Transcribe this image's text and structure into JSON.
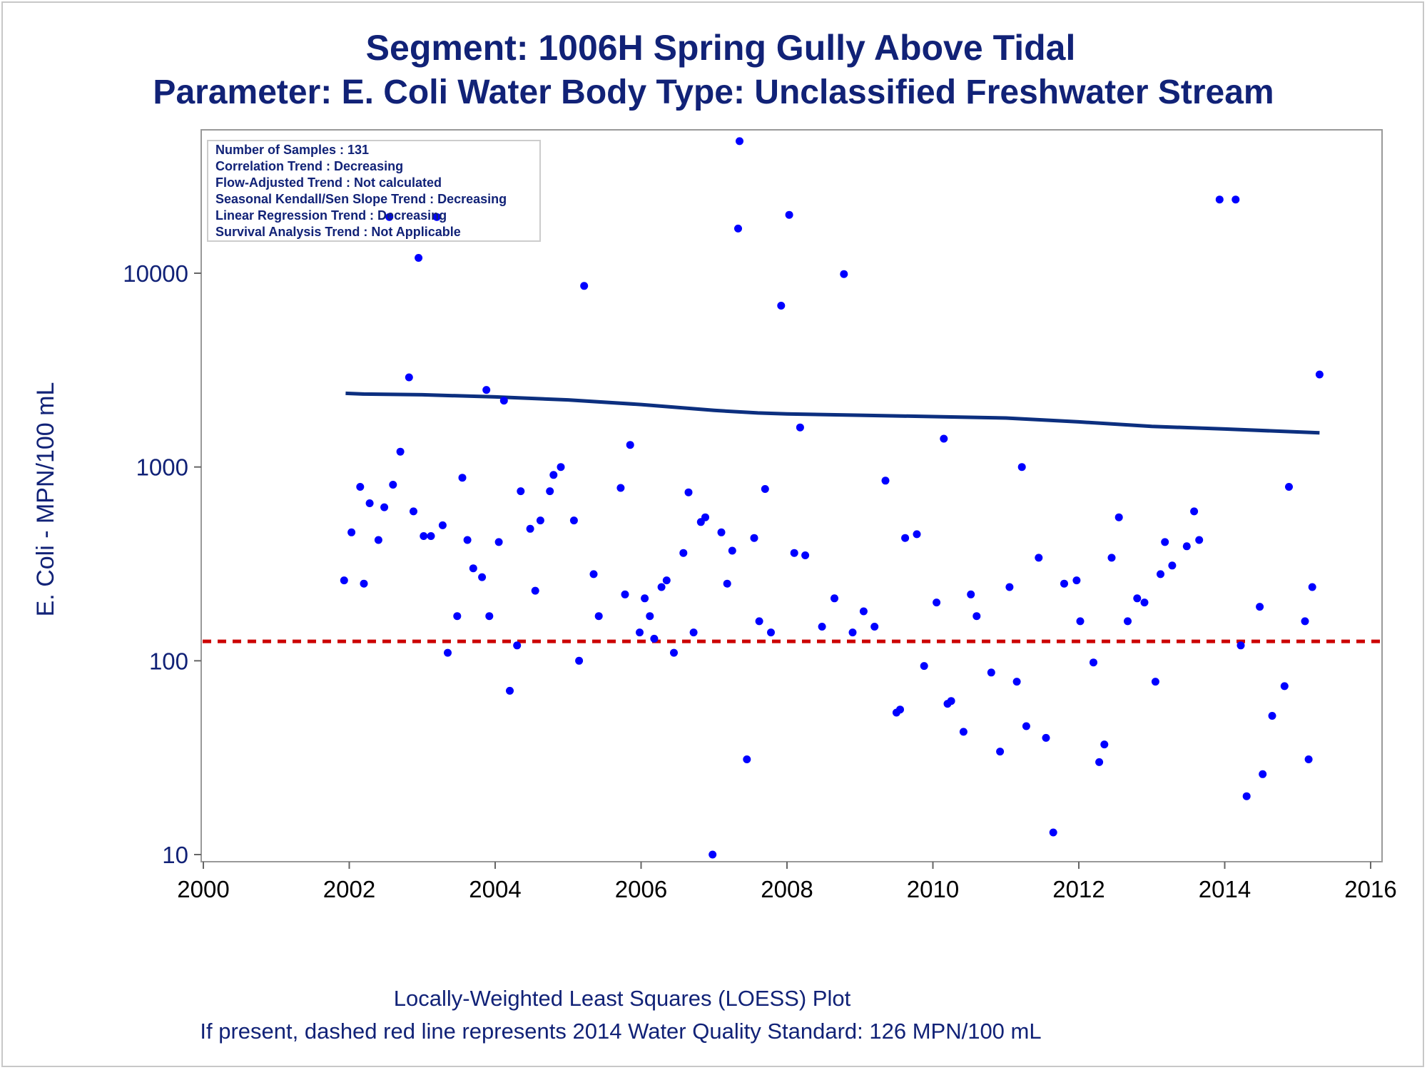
{
  "title": "Segment: 1006H  Spring Gully Above Tidal",
  "subtitle": "Parameter: E. Coli   Water Body Type: Unclassified Freshwater Stream",
  "footer": {
    "line1": "Locally-Weighted Least Squares (LOESS) Plot",
    "line2": "If present, dashed red line represents 2014 Water Quality Standard: 126 MPN/100 mL"
  },
  "info_box": [
    "Number of Samples : 131",
    "Correlation Trend : Decreasing",
    "Flow-Adjusted Trend : Not calculated",
    "Seasonal Kendall/Sen Slope Trend : Decreasing",
    "Linear Regression Trend : Decreasing",
    "Survival Analysis Trend : Not Applicable"
  ],
  "colors": {
    "text": "#112277",
    "points": "#0000ff",
    "loess": "#0c2f7f",
    "standard": "#cc0000",
    "axis": "#999999"
  },
  "chart_data": {
    "type": "scatter",
    "xlabel": "",
    "ylabel": "E. Coli - MPN/100 mL",
    "yscale": "log",
    "xlim": [
      2000,
      2016
    ],
    "ylim": [
      10,
      60000
    ],
    "xticks": [
      2000,
      2002,
      2004,
      2006,
      2008,
      2010,
      2012,
      2014,
      2016
    ],
    "yticks": [
      10,
      100,
      1000,
      10000
    ],
    "grid": false,
    "standard_line": 126,
    "loess": [
      [
        2001.95,
        2400
      ],
      [
        2002.2,
        2380
      ],
      [
        2003,
        2360
      ],
      [
        2004,
        2300
      ],
      [
        2005,
        2220
      ],
      [
        2006,
        2100
      ],
      [
        2007,
        1960
      ],
      [
        2007.6,
        1900
      ],
      [
        2008,
        1880
      ],
      [
        2009,
        1850
      ],
      [
        2010,
        1820
      ],
      [
        2011,
        1790
      ],
      [
        2012,
        1710
      ],
      [
        2013,
        1620
      ],
      [
        2014,
        1570
      ],
      [
        2015.3,
        1500
      ]
    ],
    "points": [
      [
        2001.93,
        260
      ],
      [
        2002.03,
        460
      ],
      [
        2002.15,
        790
      ],
      [
        2002.2,
        250
      ],
      [
        2002.28,
        650
      ],
      [
        2002.4,
        420
      ],
      [
        2002.48,
        620
      ],
      [
        2002.6,
        810
      ],
      [
        2002.7,
        1200
      ],
      [
        2002.82,
        2900
      ],
      [
        2002.88,
        590
      ],
      [
        2002.95,
        12000
      ],
      [
        2002.55,
        19500
      ],
      [
        2003.02,
        440
      ],
      [
        2003.12,
        440
      ],
      [
        2003.2,
        19500
      ],
      [
        2003.28,
        500
      ],
      [
        2003.35,
        110
      ],
      [
        2003.48,
        170
      ],
      [
        2003.55,
        880
      ],
      [
        2003.62,
        420
      ],
      [
        2003.7,
        300
      ],
      [
        2003.82,
        270
      ],
      [
        2003.92,
        170
      ],
      [
        2003.88,
        2500
      ],
      [
        2004.05,
        410
      ],
      [
        2004.12,
        2200
      ],
      [
        2004.2,
        70
      ],
      [
        2004.3,
        120
      ],
      [
        2004.35,
        750
      ],
      [
        2004.48,
        480
      ],
      [
        2004.55,
        230
      ],
      [
        2004.62,
        530
      ],
      [
        2004.75,
        750
      ],
      [
        2004.8,
        910
      ],
      [
        2004.9,
        1000
      ],
      [
        2005.08,
        530
      ],
      [
        2005.15,
        100
      ],
      [
        2005.22,
        8600
      ],
      [
        2005.35,
        280
      ],
      [
        2005.42,
        170
      ],
      [
        2005.72,
        780
      ],
      [
        2005.78,
        220
      ],
      [
        2005.85,
        1300
      ],
      [
        2005.98,
        140
      ],
      [
        2006.05,
        210
      ],
      [
        2006.12,
        170
      ],
      [
        2006.18,
        130
      ],
      [
        2006.28,
        240
      ],
      [
        2006.35,
        260
      ],
      [
        2006.45,
        110
      ],
      [
        2006.58,
        360
      ],
      [
        2006.65,
        740
      ],
      [
        2006.72,
        140
      ],
      [
        2006.82,
        520
      ],
      [
        2006.88,
        550
      ],
      [
        2006.98,
        10
      ],
      [
        2007.1,
        460
      ],
      [
        2007.18,
        250
      ],
      [
        2007.25,
        370
      ],
      [
        2007.33,
        17000
      ],
      [
        2007.35,
        48000
      ],
      [
        2007.45,
        31
      ],
      [
        2007.55,
        430
      ],
      [
        2007.62,
        160
      ],
      [
        2007.7,
        770
      ],
      [
        2007.78,
        140
      ],
      [
        2007.92,
        6800
      ],
      [
        2008.03,
        20000
      ],
      [
        2008.1,
        360
      ],
      [
        2008.18,
        1600
      ],
      [
        2008.25,
        350
      ],
      [
        2008.48,
        150
      ],
      [
        2008.65,
        210
      ],
      [
        2008.78,
        9900
      ],
      [
        2008.9,
        140
      ],
      [
        2009.05,
        180
      ],
      [
        2009.2,
        150
      ],
      [
        2009.35,
        850
      ],
      [
        2009.5,
        54
      ],
      [
        2009.55,
        56
      ],
      [
        2009.62,
        430
      ],
      [
        2009.78,
        450
      ],
      [
        2009.88,
        94
      ],
      [
        2010.05,
        200
      ],
      [
        2010.15,
        1400
      ],
      [
        2010.2,
        60
      ],
      [
        2010.25,
        62
      ],
      [
        2010.42,
        43
      ],
      [
        2010.52,
        220
      ],
      [
        2010.6,
        170
      ],
      [
        2010.8,
        87
      ],
      [
        2010.92,
        34
      ],
      [
        2011.05,
        240
      ],
      [
        2011.15,
        78
      ],
      [
        2011.22,
        1000
      ],
      [
        2011.28,
        46
      ],
      [
        2011.45,
        340
      ],
      [
        2011.55,
        40
      ],
      [
        2011.65,
        13
      ],
      [
        2011.8,
        250
      ],
      [
        2011.97,
        260
      ],
      [
        2012.02,
        160
      ],
      [
        2012.2,
        98
      ],
      [
        2012.28,
        30
      ],
      [
        2012.35,
        37
      ],
      [
        2012.45,
        340
      ],
      [
        2012.55,
        550
      ],
      [
        2012.67,
        160
      ],
      [
        2012.8,
        210
      ],
      [
        2012.9,
        200
      ],
      [
        2013.05,
        78
      ],
      [
        2013.12,
        280
      ],
      [
        2013.18,
        410
      ],
      [
        2013.28,
        310
      ],
      [
        2013.48,
        390
      ],
      [
        2013.58,
        590
      ],
      [
        2013.65,
        420
      ],
      [
        2013.93,
        24000
      ],
      [
        2014.15,
        24000
      ],
      [
        2014.22,
        120
      ],
      [
        2014.3,
        20
      ],
      [
        2014.48,
        190
      ],
      [
        2014.52,
        26
      ],
      [
        2014.65,
        52
      ],
      [
        2014.82,
        74
      ],
      [
        2014.88,
        790
      ],
      [
        2015.1,
        160
      ],
      [
        2015.15,
        31
      ],
      [
        2015.2,
        240
      ],
      [
        2015.3,
        3000
      ]
    ]
  }
}
